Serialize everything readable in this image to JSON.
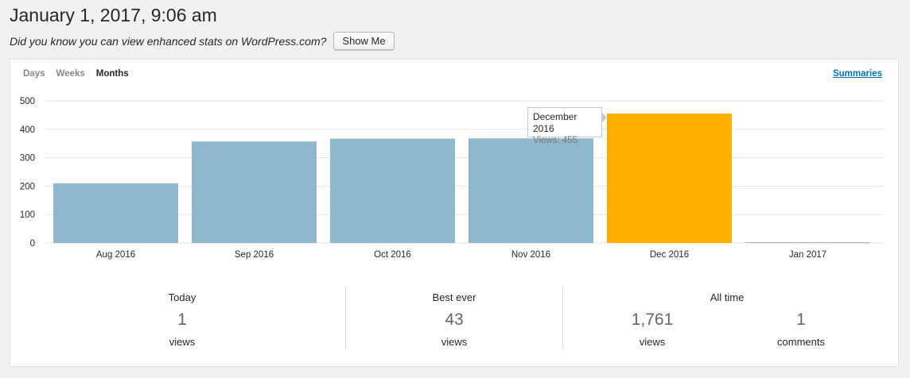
{
  "title": "January 1, 2017, 9:06 am",
  "notice": {
    "text": "Did you know you can view enhanced stats on WordPress.com?",
    "button": "Show Me"
  },
  "tabs": [
    {
      "label": "Days",
      "active": false
    },
    {
      "label": "Weeks",
      "active": false
    },
    {
      "label": "Months",
      "active": true
    }
  ],
  "summaries_link": "Summaries",
  "chart_data": {
    "type": "bar",
    "categories": [
      "Aug 2016",
      "Sep 2016",
      "Oct 2016",
      "Nov 2016",
      "Dec 2016",
      "Jan 2017"
    ],
    "values": [
      210,
      357,
      367,
      368,
      455,
      1
    ],
    "ylim": [
      0,
      500
    ],
    "yticks": [
      0,
      100,
      200,
      300,
      400,
      500
    ],
    "highlight_index": 4,
    "colors": {
      "bar": "#8fb8cc",
      "highlight": "#ffaf00",
      "grid": "#e3e3e3"
    },
    "grid": true,
    "title": "",
    "xlabel": "",
    "ylabel": ""
  },
  "tooltip": {
    "title": "December 2016",
    "value": "Views: 455"
  },
  "stats": {
    "today": {
      "label": "Today",
      "value": "1",
      "unit": "views"
    },
    "best": {
      "label": "Best ever",
      "value": "43",
      "unit": "views"
    },
    "all_time": {
      "label": "All time",
      "views": {
        "value": "1,761",
        "unit": "views"
      },
      "comments": {
        "value": "1",
        "unit": "comments"
      }
    }
  }
}
